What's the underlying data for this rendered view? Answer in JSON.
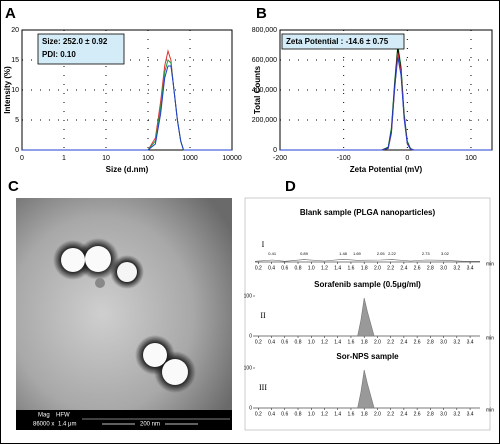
{
  "panels": [
    "A",
    "B",
    "C",
    "D"
  ],
  "chart_data": [
    {
      "type": "line",
      "xscale": "log",
      "grid": true,
      "xlabel": "Size (d.nm)",
      "ylabel": "Intensity (%)",
      "annotation": [
        "Size: 252.0 ± 0.92",
        "PDI: 0.10"
      ],
      "xlim": [
        0.1,
        10000
      ],
      "xticks": [
        {
          "value": 0.1,
          "label": "0"
        },
        1,
        10,
        100,
        1000,
        10000
      ],
      "ylim": [
        0,
        20
      ],
      "yticks": [
        0,
        5,
        10,
        15,
        20
      ],
      "x": [
        0.1,
        100,
        150,
        200,
        250,
        300,
        350,
        400,
        500,
        600,
        700,
        10000
      ],
      "series": [
        {
          "color": "#e03030",
          "values": [
            0,
            0,
            2,
            8,
            14,
            16.5,
            15,
            11,
            5,
            1.5,
            0,
            0
          ]
        },
        {
          "color": "#20a040",
          "values": [
            0,
            0,
            1.5,
            7,
            13,
            15,
            14.5,
            11,
            5,
            1.5,
            0,
            0
          ]
        },
        {
          "color": "#2040d0",
          "values": [
            0,
            0,
            1,
            6,
            12,
            14,
            14,
            11,
            5,
            1.5,
            0,
            0
          ]
        }
      ]
    },
    {
      "type": "line",
      "grid": true,
      "xlabel": "Zeta Potential (mV)",
      "ylabel": "Total Counts",
      "annotation": [
        "Zeta Potential : -14.6 ± 0.75"
      ],
      "xlim": [
        -200,
        133
      ],
      "xticks": [
        -200,
        -100,
        0,
        100
      ],
      "ylim": [
        0,
        800000
      ],
      "yticks": [
        0,
        {
          "value": 200000,
          "label": "200,000"
        },
        {
          "value": 400000,
          "label": "400,000"
        },
        {
          "value": 600000,
          "label": "600,000"
        },
        {
          "value": 800000,
          "label": "800,000"
        }
      ],
      "x": [
        -200,
        -40,
        -30,
        -25,
        -20,
        -15,
        -10,
        -5,
        0,
        5,
        10,
        133
      ],
      "series": [
        {
          "color": "#20b040",
          "values": [
            0,
            0,
            20000,
            150000,
            450000,
            700000,
            560000,
            250000,
            60000,
            10000,
            0,
            0
          ]
        },
        {
          "color": "#000000",
          "values": [
            0,
            0,
            15000,
            130000,
            430000,
            680000,
            540000,
            230000,
            50000,
            8000,
            0,
            0
          ]
        },
        {
          "color": "#e03030",
          "values": [
            0,
            0,
            10000,
            110000,
            400000,
            650000,
            520000,
            220000,
            45000,
            6000,
            0,
            0
          ]
        },
        {
          "color": "#2040d0",
          "values": [
            0,
            0,
            12000,
            120000,
            410000,
            620000,
            500000,
            210000,
            40000,
            5000,
            0,
            0
          ]
        }
      ]
    },
    {
      "type": "line",
      "title": "Blank sample (PLGA nanoparticles)",
      "label": "I",
      "unit": "min",
      "xlim": [
        0.15,
        3.55
      ],
      "xticks": [
        0.2,
        0.4,
        0.6,
        0.8,
        {
          "value": 1,
          "label": "1.0"
        },
        1.2,
        1.4,
        1.6,
        1.8,
        {
          "value": 2,
          "label": "2.0"
        },
        2.2,
        2.4,
        2.6,
        2.8,
        {
          "value": 3,
          "label": "3.0"
        },
        3.2,
        3.4
      ],
      "ylim": [
        0,
        100
      ],
      "peak_labels": [
        0.41,
        0.89,
        1.48,
        1.69,
        2.05,
        2.22,
        2.73,
        3.02
      ],
      "x": [
        0.15,
        0.41,
        0.6,
        0.89,
        1.2,
        1.48,
        1.69,
        2.05,
        2.22,
        2.5,
        2.73,
        3.02,
        3.3,
        3.55
      ],
      "series": [
        {
          "color": "#666666",
          "values": [
            2,
            6,
            2,
            7,
            3,
            8,
            5,
            6,
            7,
            3,
            6,
            5,
            2,
            2
          ]
        }
      ]
    },
    {
      "type": "line",
      "title": "Sorafenib sample (0.5μg/ml)",
      "label": "II",
      "unit": "min",
      "xlim": [
        0.15,
        3.55
      ],
      "xticks": [
        0.2,
        0.4,
        0.6,
        0.8,
        {
          "value": 1,
          "label": "1.0"
        },
        1.2,
        1.4,
        1.6,
        1.8,
        {
          "value": 2,
          "label": "2.0"
        },
        2.2,
        2.4,
        2.6,
        2.8,
        {
          "value": 3,
          "label": "3.0"
        },
        3.2,
        3.4
      ],
      "ylim": [
        0,
        100
      ],
      "yticks": [
        0,
        100
      ],
      "x": [
        0.15,
        1.7,
        1.75,
        1.8,
        1.85,
        1.95,
        3.55
      ],
      "series": [
        {
          "color": "#999999",
          "fill": true,
          "values": [
            0,
            0,
            40,
            95,
            60,
            0,
            0
          ]
        }
      ]
    },
    {
      "type": "line",
      "title": "Sor-NPS sample",
      "label": "III",
      "unit": "min",
      "xlim": [
        0.15,
        3.55
      ],
      "xticks": [
        0.2,
        0.4,
        0.6,
        0.8,
        {
          "value": 1,
          "label": "1.0"
        },
        1.2,
        1.4,
        1.6,
        1.8,
        {
          "value": 2,
          "label": "2.0"
        },
        2.2,
        2.4,
        2.6,
        2.8,
        {
          "value": 3,
          "label": "3.0"
        },
        3.2,
        3.4
      ],
      "ylim": [
        0,
        100
      ],
      "yticks": [
        0,
        100
      ],
      "x": [
        0.15,
        1.7,
        1.75,
        1.8,
        1.85,
        1.95,
        3.55
      ],
      "series": [
        {
          "color": "#999999",
          "fill": true,
          "values": [
            0,
            0,
            40,
            95,
            60,
            0,
            0
          ]
        }
      ]
    }
  ],
  "image": {
    "labels": [
      "Mag",
      "HFW",
      "86000 x",
      "1.4 μm",
      "200 nm"
    ]
  }
}
